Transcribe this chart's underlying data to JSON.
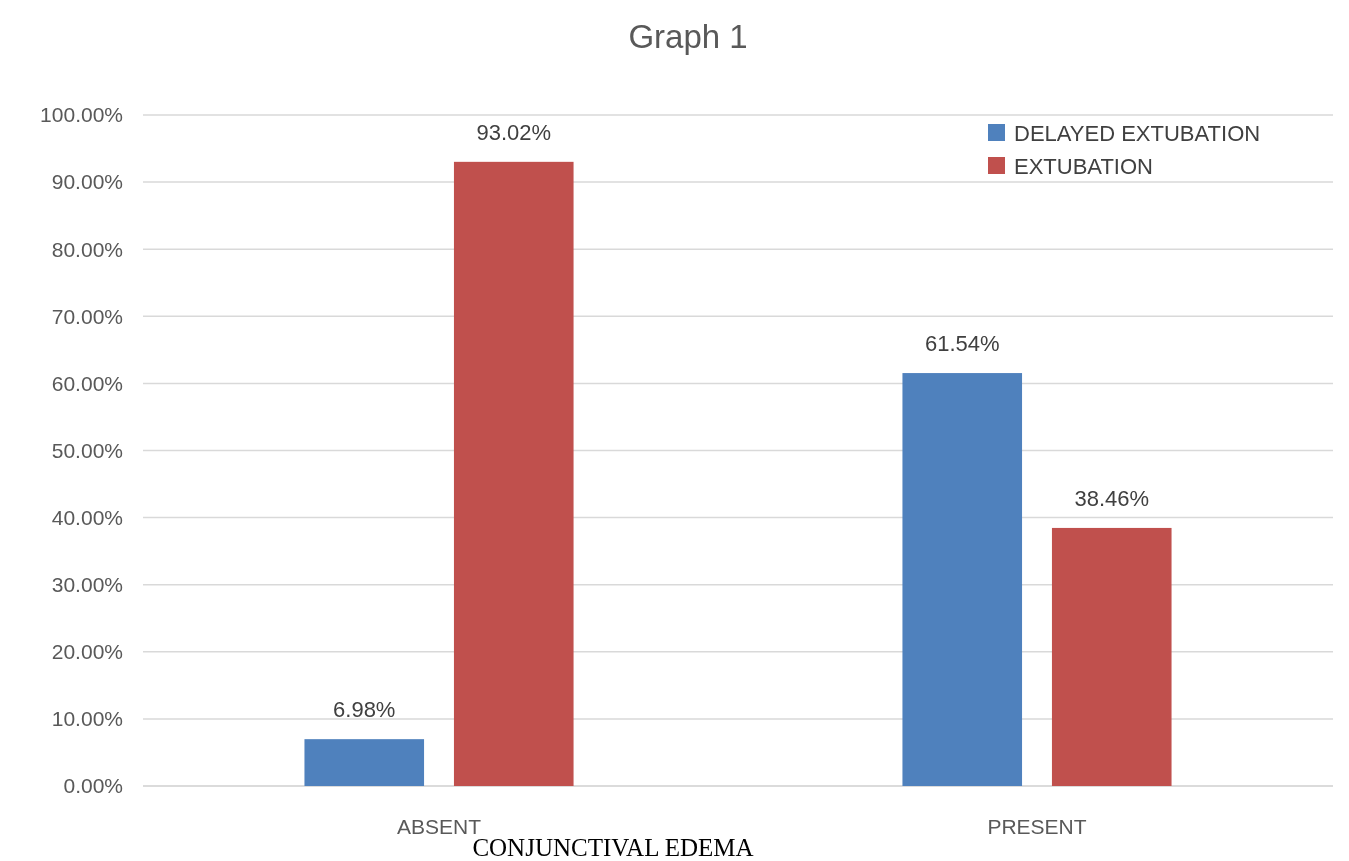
{
  "chart_data": {
    "type": "bar",
    "title": "Graph 1",
    "xlabel": "CONJUNCTIVAL EDEMA",
    "categories": [
      "ABSENT",
      "PRESENT"
    ],
    "series": [
      {
        "name": "DELAYED EXTUBATION",
        "color": "#4f81bd",
        "values": [
          6.98,
          61.54
        ],
        "value_labels": [
          "6.98%",
          "61.54%"
        ]
      },
      {
        "name": "EXTUBATION",
        "color": "#c0504d",
        "values": [
          93.02,
          38.46
        ],
        "value_labels": [
          "93.02%",
          "38.46%"
        ]
      }
    ],
    "ylim": [
      0,
      100
    ],
    "yticks": [
      {
        "value": 0,
        "label": "0.00%"
      },
      {
        "value": 10,
        "label": "10.00%"
      },
      {
        "value": 20,
        "label": "20.00%"
      },
      {
        "value": 30,
        "label": "30.00%"
      },
      {
        "value": 40,
        "label": "40.00%"
      },
      {
        "value": 50,
        "label": "50.00%"
      },
      {
        "value": 60,
        "label": "60.00%"
      },
      {
        "value": 70,
        "label": "70.00%"
      },
      {
        "value": 80,
        "label": "80.00%"
      },
      {
        "value": 90,
        "label": "90.00%"
      },
      {
        "value": 100,
        "label": "100.00%"
      }
    ],
    "grid": "y",
    "legend": "top right"
  }
}
